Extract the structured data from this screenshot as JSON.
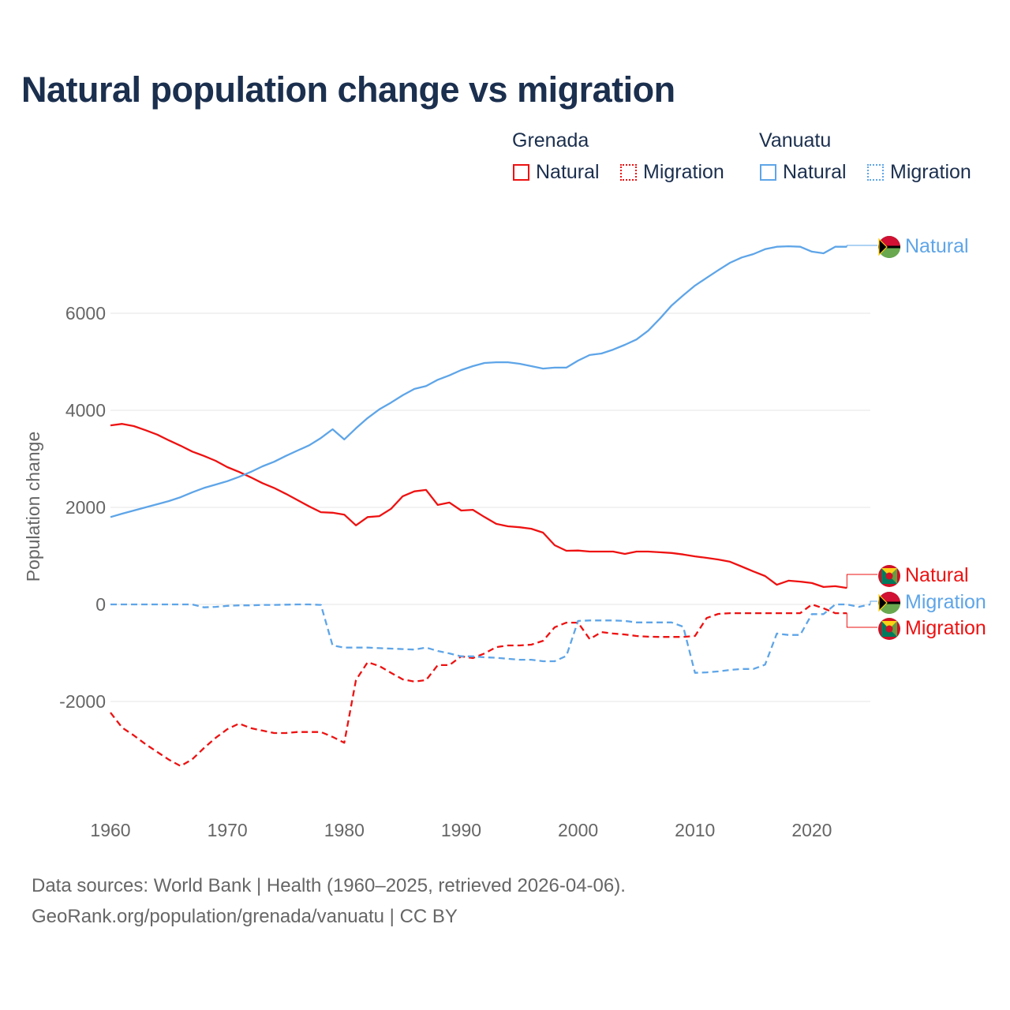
{
  "title": "Natural population change vs migration",
  "legend": {
    "groups": [
      {
        "name": "Grenada",
        "items": [
          {
            "label": "Natural",
            "style": "solid"
          },
          {
            "label": "Migration",
            "style": "dotted"
          }
        ],
        "color": "#ee1111"
      },
      {
        "name": "Vanuatu",
        "items": [
          {
            "label": "Natural",
            "style": "solid"
          },
          {
            "label": "Migration",
            "style": "dotted"
          }
        ],
        "color": "#5ea5e8"
      }
    ]
  },
  "footer": {
    "line1": "Data sources: World Bank | Health (1960–2025, retrieved 2026-04-06).",
    "line2": "GeoRank.org/population/grenada/vanuatu | CC BY"
  },
  "chart_data": {
    "type": "line",
    "title": "Natural population change vs migration",
    "xlabel": "",
    "ylabel": "Population change",
    "xlim": [
      1960,
      2025
    ],
    "ylim": [
      -4000,
      7500
    ],
    "xticks": [
      1960,
      1970,
      1980,
      1990,
      2000,
      2010,
      2020
    ],
    "yticks": [
      -2000,
      0,
      2000,
      4000,
      6000
    ],
    "ytick_labels": [
      "-2000",
      "0",
      "2000",
      "4000",
      "6000"
    ],
    "grid": true,
    "legend_position": "top-right",
    "x_start": 1960,
    "series": [
      {
        "name": "Grenada Natural",
        "end_label": "Natural",
        "color": "#ee1111",
        "dash": false,
        "values": [
          3690,
          3720,
          3675,
          3590,
          3500,
          3380,
          3270,
          3150,
          3060,
          2960,
          2830,
          2730,
          2620,
          2500,
          2400,
          2280,
          2150,
          2020,
          1900,
          1890,
          1850,
          1630,
          1800,
          1820,
          1970,
          2230,
          2330,
          2360,
          2050,
          2100,
          1935,
          1950,
          1800,
          1660,
          1610,
          1590,
          1560,
          1480,
          1220,
          1105,
          1110,
          1090,
          1090,
          1090,
          1040,
          1090,
          1090,
          1075,
          1060,
          1030,
          990,
          960,
          925,
          880,
          780,
          680,
          585,
          405,
          490,
          470,
          440,
          360,
          375,
          340
        ]
      },
      {
        "name": "Grenada Migration",
        "end_label": "Migration",
        "color": "#ee1111",
        "dash": true,
        "values": [
          -2230,
          -2540,
          -2700,
          -2880,
          -3040,
          -3200,
          -3330,
          -3190,
          -2960,
          -2750,
          -2570,
          -2455,
          -2550,
          -2600,
          -2650,
          -2650,
          -2630,
          -2630,
          -2630,
          -2730,
          -2850,
          -1560,
          -1190,
          -1270,
          -1410,
          -1545,
          -1590,
          -1560,
          -1250,
          -1250,
          -1070,
          -1105,
          -1010,
          -880,
          -845,
          -845,
          -830,
          -750,
          -470,
          -375,
          -375,
          -715,
          -570,
          -600,
          -620,
          -650,
          -665,
          -670,
          -670,
          -670,
          -650,
          -280,
          -195,
          -180,
          -180,
          -180,
          -180,
          -180,
          -180,
          -180,
          0,
          -80,
          -180,
          -180
        ]
      },
      {
        "name": "Vanuatu Natural",
        "end_label": "Natural",
        "color": "#5ea5e8",
        "dash": false,
        "values": [
          1800,
          1870,
          1935,
          2000,
          2065,
          2130,
          2210,
          2310,
          2400,
          2470,
          2540,
          2630,
          2730,
          2845,
          2940,
          3060,
          3170,
          3280,
          3430,
          3610,
          3400,
          3630,
          3840,
          4020,
          4160,
          4310,
          4440,
          4500,
          4630,
          4720,
          4830,
          4910,
          4975,
          4990,
          4990,
          4960,
          4910,
          4860,
          4880,
          4880,
          5025,
          5140,
          5170,
          5250,
          5350,
          5460,
          5640,
          5890,
          6160,
          6370,
          6570,
          6730,
          6890,
          7040,
          7150,
          7220,
          7320,
          7370,
          7380,
          7370,
          7270,
          7235,
          7370,
          7370
        ]
      },
      {
        "name": "Vanuatu Migration",
        "end_label": "Migration",
        "color": "#5ea5e8",
        "dash": true,
        "values": [
          0,
          0,
          0,
          0,
          0,
          0,
          0,
          0,
          -60,
          -50,
          -30,
          -20,
          -20,
          -10,
          -10,
          -5,
          0,
          0,
          -10,
          -845,
          -890,
          -890,
          -890,
          -900,
          -910,
          -920,
          -930,
          -890,
          -960,
          -1010,
          -1070,
          -1070,
          -1090,
          -1100,
          -1120,
          -1140,
          -1140,
          -1170,
          -1170,
          -1060,
          -340,
          -330,
          -330,
          -330,
          -340,
          -370,
          -370,
          -370,
          -370,
          -460,
          -1410,
          -1400,
          -1380,
          -1350,
          -1330,
          -1330,
          -1240,
          -600,
          -630,
          -630,
          -200,
          -200,
          0,
          0,
          -50,
          0
        ]
      }
    ]
  }
}
